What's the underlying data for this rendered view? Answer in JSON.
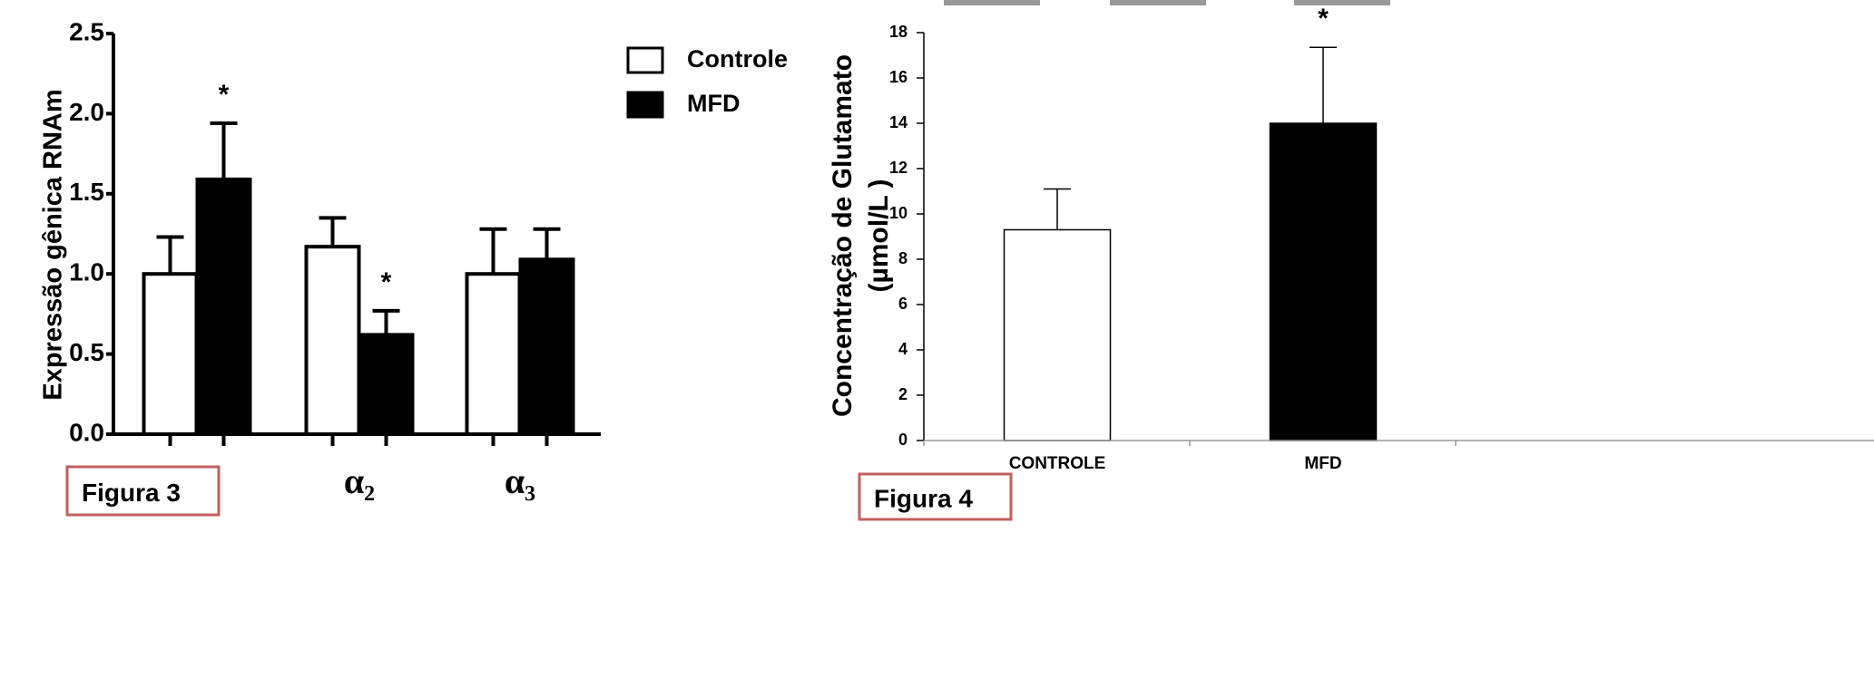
{
  "chart_data": [
    {
      "type": "bar",
      "ylabel": "Expressão gênica RNAm",
      "categories": [
        null,
        "α₂",
        "α₃"
      ],
      "series": [
        {
          "name": "Controle",
          "color": "#ffffff",
          "values": [
            1.0,
            1.17,
            1.0
          ],
          "errors": [
            0.23,
            0.18,
            0.28
          ],
          "value_annotations": [
            null,
            null,
            null
          ]
        },
        {
          "name": "MFD",
          "color": "#000000",
          "values": [
            1.59,
            0.62,
            1.09
          ],
          "errors": [
            0.35,
            0.15,
            0.19
          ],
          "value_annotations": [
            "*",
            "*",
            null
          ]
        }
      ],
      "ylim": [
        0,
        2.5
      ],
      "yticks": [
        {
          "value": 0,
          "label": "0.0"
        },
        0.5,
        {
          "value": 1,
          "label": "1.0"
        },
        1.5,
        {
          "value": 2,
          "label": "2.0"
        },
        2.5
      ],
      "grid": false,
      "legend": "top-right",
      "figure_label": "Figura 3"
    },
    {
      "type": "bar",
      "ylabel": [
        "Concentração de Glutamato",
        "(µmol/L )"
      ],
      "categories": [
        "CONTROLE",
        "MFD"
      ],
      "series": [
        {
          "colors": [
            "#ffffff",
            "#000000"
          ],
          "values": [
            9.3,
            14.0
          ],
          "errors": [
            1.8,
            3.35
          ],
          "value_annotations": [
            null,
            "*"
          ]
        }
      ],
      "ylim": [
        0,
        18
      ],
      "yticks": [
        0,
        2,
        4,
        6,
        8,
        10,
        12,
        14,
        16,
        18
      ],
      "grid": false,
      "figure_label": "Figura 4"
    }
  ]
}
